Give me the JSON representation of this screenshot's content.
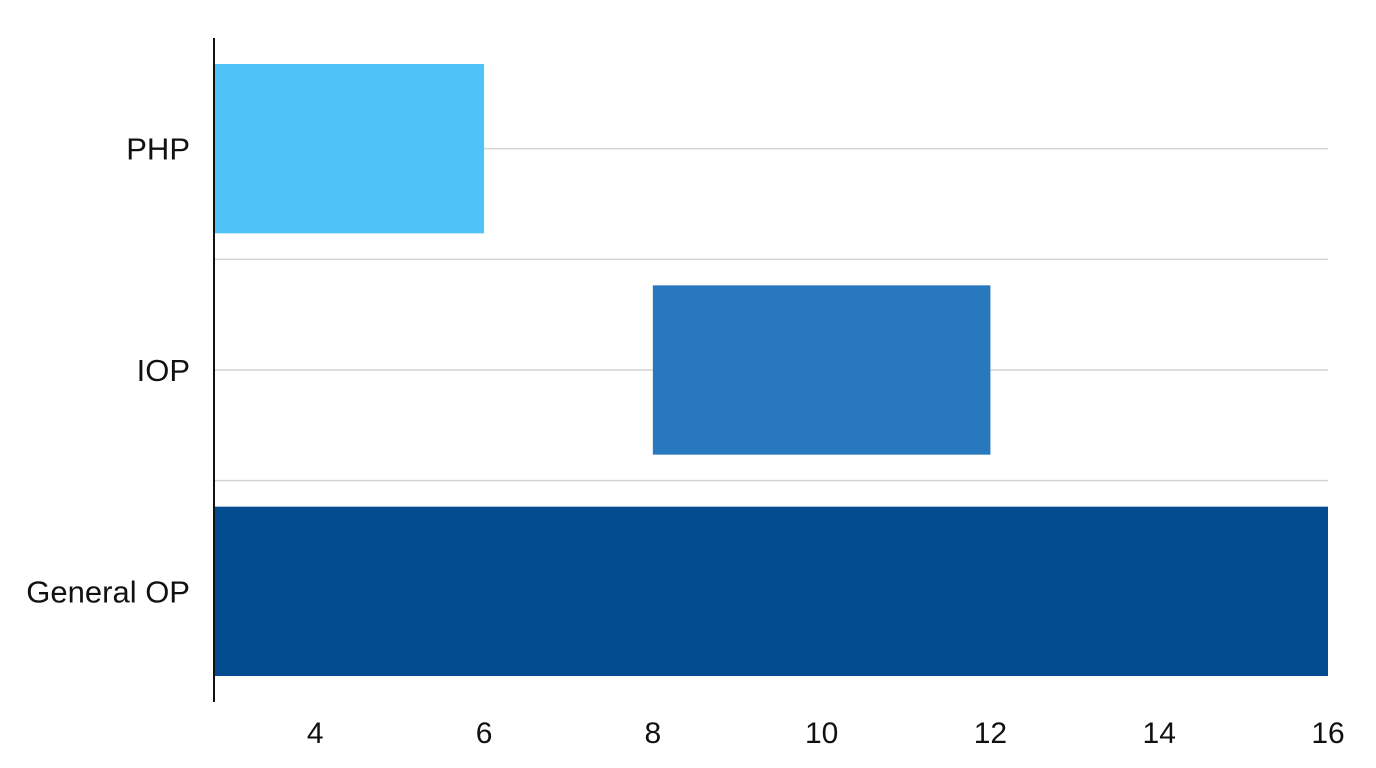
{
  "chart_data": {
    "type": "bar",
    "orientation": "horizontal",
    "subtype": "floating-range",
    "categories": [
      "PHP",
      "IOP",
      "General OP"
    ],
    "series": [
      {
        "values": [
          [
            2.8,
            6
          ],
          [
            8,
            12
          ],
          [
            2.8,
            16
          ]
        ]
      }
    ],
    "colors": [
      "#4FC3F7",
      "#2878BE",
      "#034C8F"
    ],
    "x_ticks": [
      4,
      6,
      8,
      10,
      12,
      14,
      16
    ],
    "xlim": [
      2.8,
      16
    ],
    "title": "",
    "xlabel": "",
    "ylabel": "",
    "grid": true,
    "legend": "none"
  }
}
